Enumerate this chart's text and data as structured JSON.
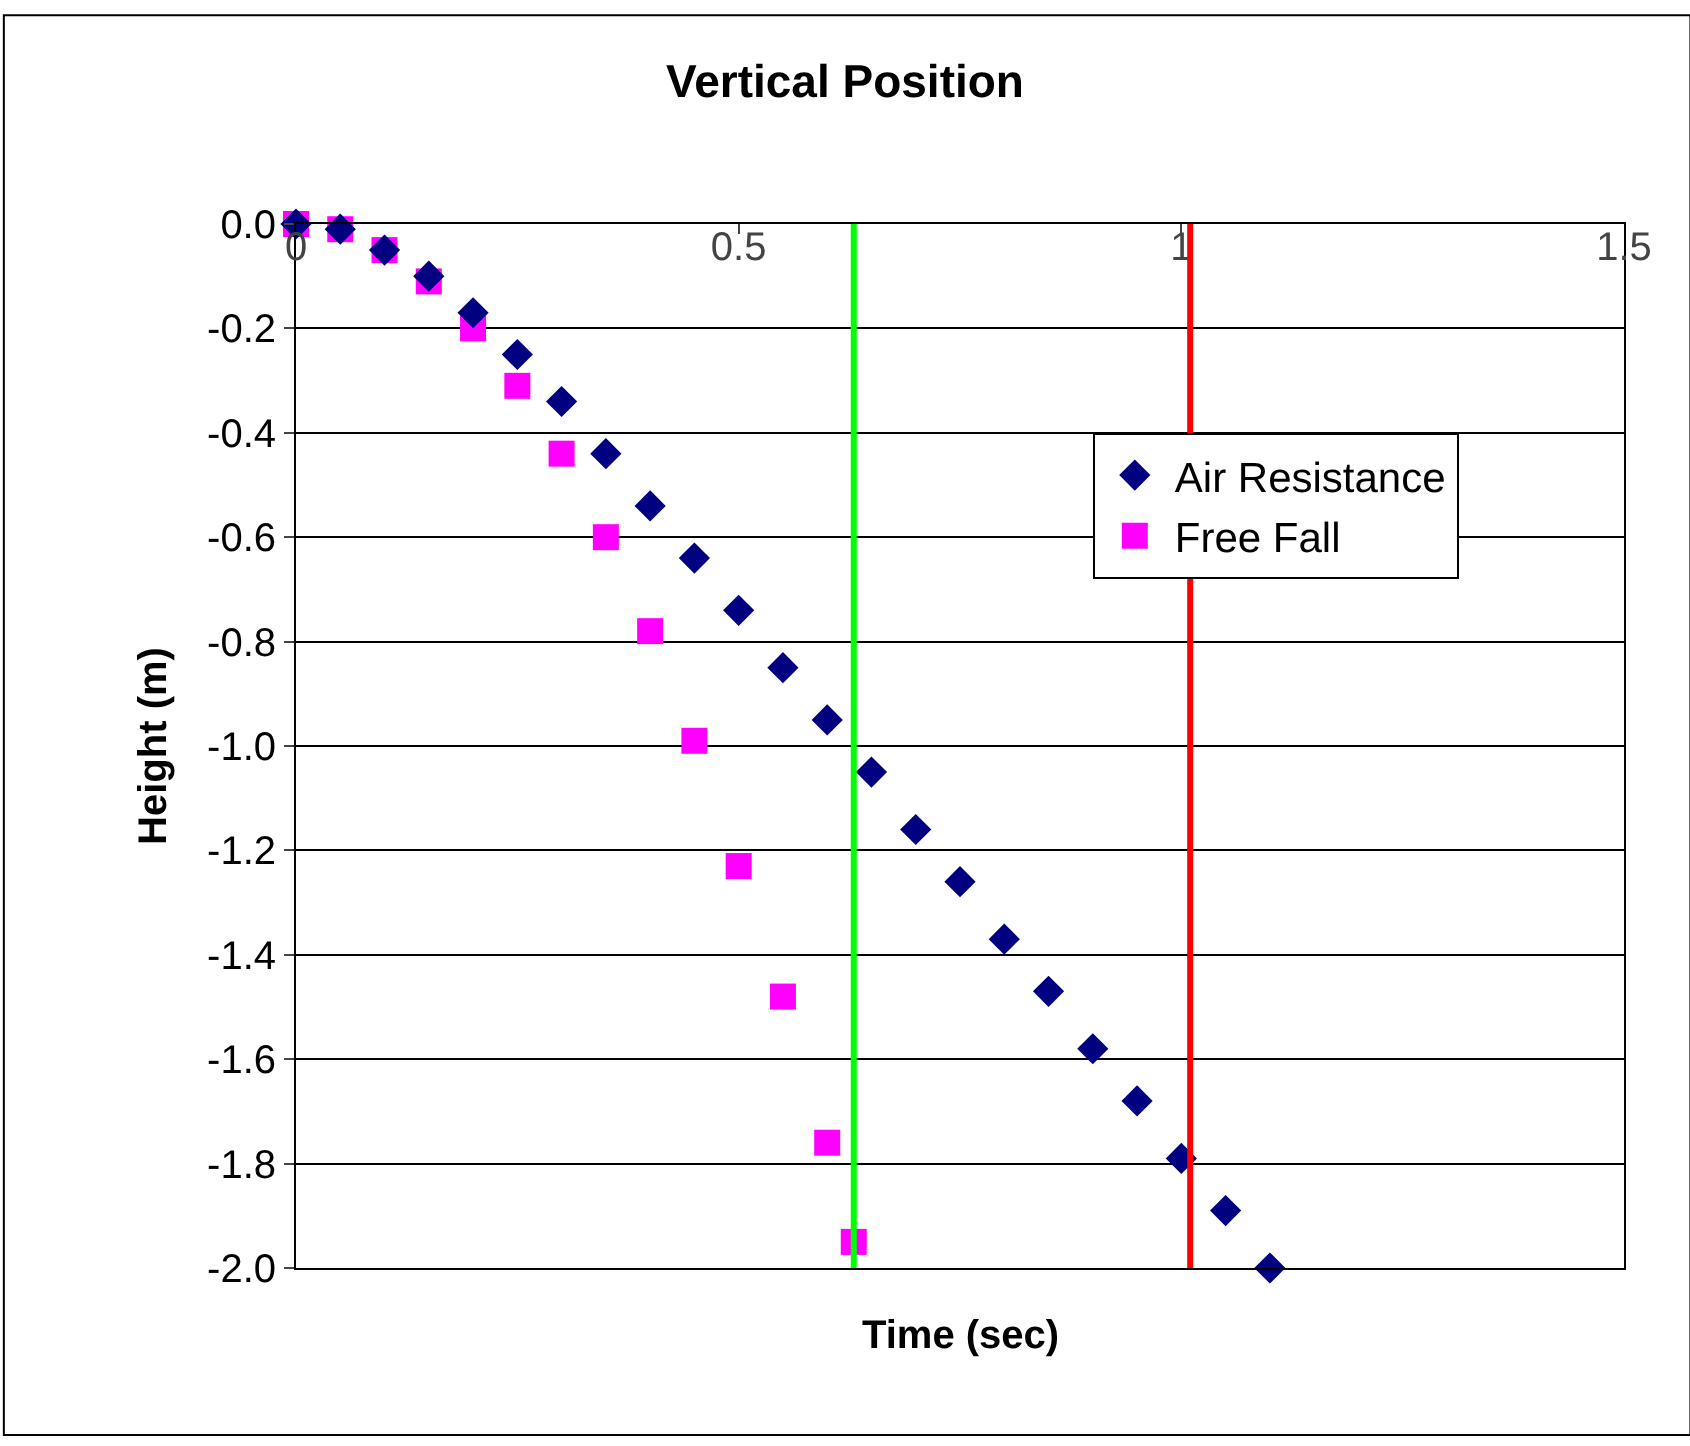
{
  "chart_data": {
    "type": "scatter",
    "title": "Vertical Position",
    "xlabel": "Time (sec)",
    "ylabel": "Height (m)",
    "xlim": [
      0,
      1.5
    ],
    "xticks": [
      0,
      0.5,
      1,
      1.5
    ],
    "ylim": [
      -2.0,
      0.0
    ],
    "yticks": [
      {
        "value": 0,
        "label": "0.0"
      },
      {
        "value": -0.2,
        "label": "-0.2"
      },
      {
        "value": -0.4,
        "label": "-0.4"
      },
      {
        "value": -0.6,
        "label": "-0.6"
      },
      {
        "value": -0.8,
        "label": "-0.8"
      },
      {
        "value": -1.0,
        "label": "-1.0"
      },
      {
        "value": -1.2,
        "label": "-1.2"
      },
      {
        "value": -1.4,
        "label": "-1.4"
      },
      {
        "value": -1.6,
        "label": "-1.6"
      },
      {
        "value": -1.8,
        "label": "-1.8"
      },
      {
        "value": -2.0,
        "label": "-2.0"
      }
    ],
    "grid": "y",
    "legend": "right",
    "series": [
      {
        "name": "Air Resistance",
        "color": "#000080",
        "marker": "diamond",
        "x": [
          0,
          0.05,
          0.1,
          0.15,
          0.2,
          0.25,
          0.3,
          0.35,
          0.4,
          0.45,
          0.5,
          0.55,
          0.6,
          0.65,
          0.7,
          0.75,
          0.8,
          0.85,
          0.9,
          0.95,
          1.0,
          1.05,
          1.1
        ],
        "values": [
          0,
          -0.01,
          -0.05,
          -0.1,
          -0.17,
          -0.25,
          -0.34,
          -0.44,
          -0.54,
          -0.64,
          -0.74,
          -0.85,
          -0.95,
          -1.05,
          -1.16,
          -1.26,
          -1.37,
          -1.47,
          -1.58,
          -1.68,
          -1.79,
          -1.89,
          -2.0
        ]
      },
      {
        "name": "Free Fall",
        "color": "#ff00ff",
        "marker": "square",
        "x": [
          0,
          0.05,
          0.1,
          0.15,
          0.2,
          0.25,
          0.3,
          0.35,
          0.4,
          0.45,
          0.5,
          0.55,
          0.6,
          0.63
        ],
        "values": [
          0,
          -0.01,
          -0.05,
          -0.11,
          -0.2,
          -0.31,
          -0.44,
          -0.6,
          -0.78,
          -0.99,
          -1.23,
          -1.48,
          -1.76,
          -1.95
        ]
      }
    ],
    "ref_lines": [
      {
        "axis": "x",
        "value": 0.63,
        "color": "#00ff00"
      },
      {
        "axis": "x",
        "value": 1.01,
        "color": "#ff0000"
      }
    ]
  }
}
